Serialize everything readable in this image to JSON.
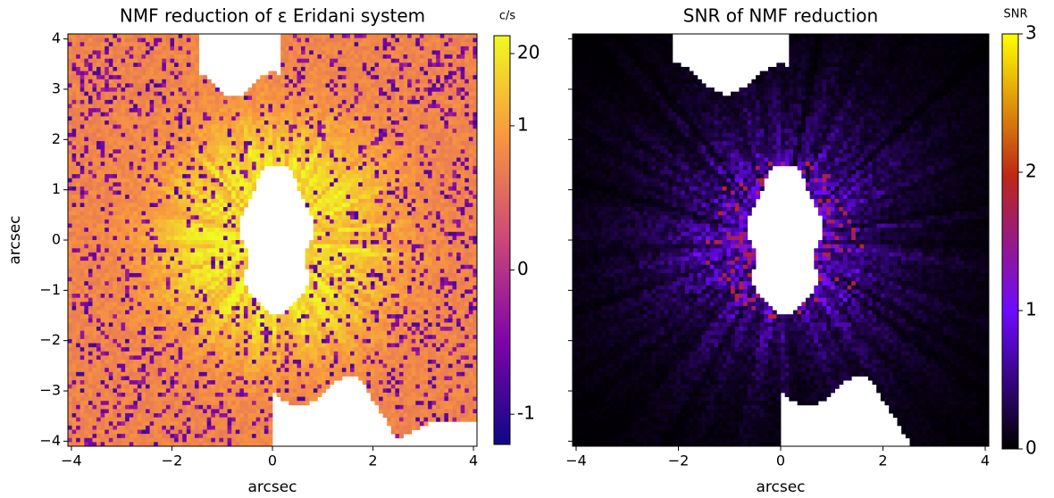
{
  "chart_data": [
    {
      "type": "heatmap",
      "title": "NMF reduction of ε Eridani system",
      "xlabel": "arcsec",
      "ylabel": "arcsec",
      "xlim": [
        -4.07,
        4.07
      ],
      "ylim": [
        -4.1,
        4.1
      ],
      "xticks": [
        {
          "value": -4,
          "label": "−4"
        },
        {
          "value": -2,
          "label": "−2"
        },
        0,
        2,
        4
      ],
      "yticks": [
        {
          "value": -4,
          "label": "−4"
        },
        {
          "value": -3,
          "label": "−3"
        },
        {
          "value": -2,
          "label": "−2"
        },
        {
          "value": -1,
          "label": "−1"
        },
        0,
        1,
        2,
        3,
        4
      ],
      "ytick_labels": true,
      "colorbar": {
        "label": "c/s",
        "scale": "symlog",
        "lim": [
          -3.5,
          42
        ],
        "colormap": "plasma",
        "ticks": [
          {
            "value": -1,
            "label": "-1"
          },
          0,
          1,
          20
        ]
      }
    },
    {
      "type": "heatmap",
      "title": "SNR of NMF reduction",
      "xlabel": "arcsec",
      "xlim": [
        -4.07,
        4.07
      ],
      "ylim": [
        -4.1,
        4.1
      ],
      "xticks": [
        {
          "value": -4,
          "label": "−4"
        },
        {
          "value": -2,
          "label": "−2"
        },
        0,
        2,
        4
      ],
      "yticks": [
        -4,
        -3,
        -2,
        -1,
        0,
        1,
        2,
        3,
        4
      ],
      "ytick_labels": false,
      "colorbar": {
        "label": "SNR",
        "scale": "linear",
        "lim": [
          0,
          3
        ],
        "colormap": "gnuplot",
        "ticks": [
          0,
          1,
          2,
          3
        ]
      }
    }
  ]
}
